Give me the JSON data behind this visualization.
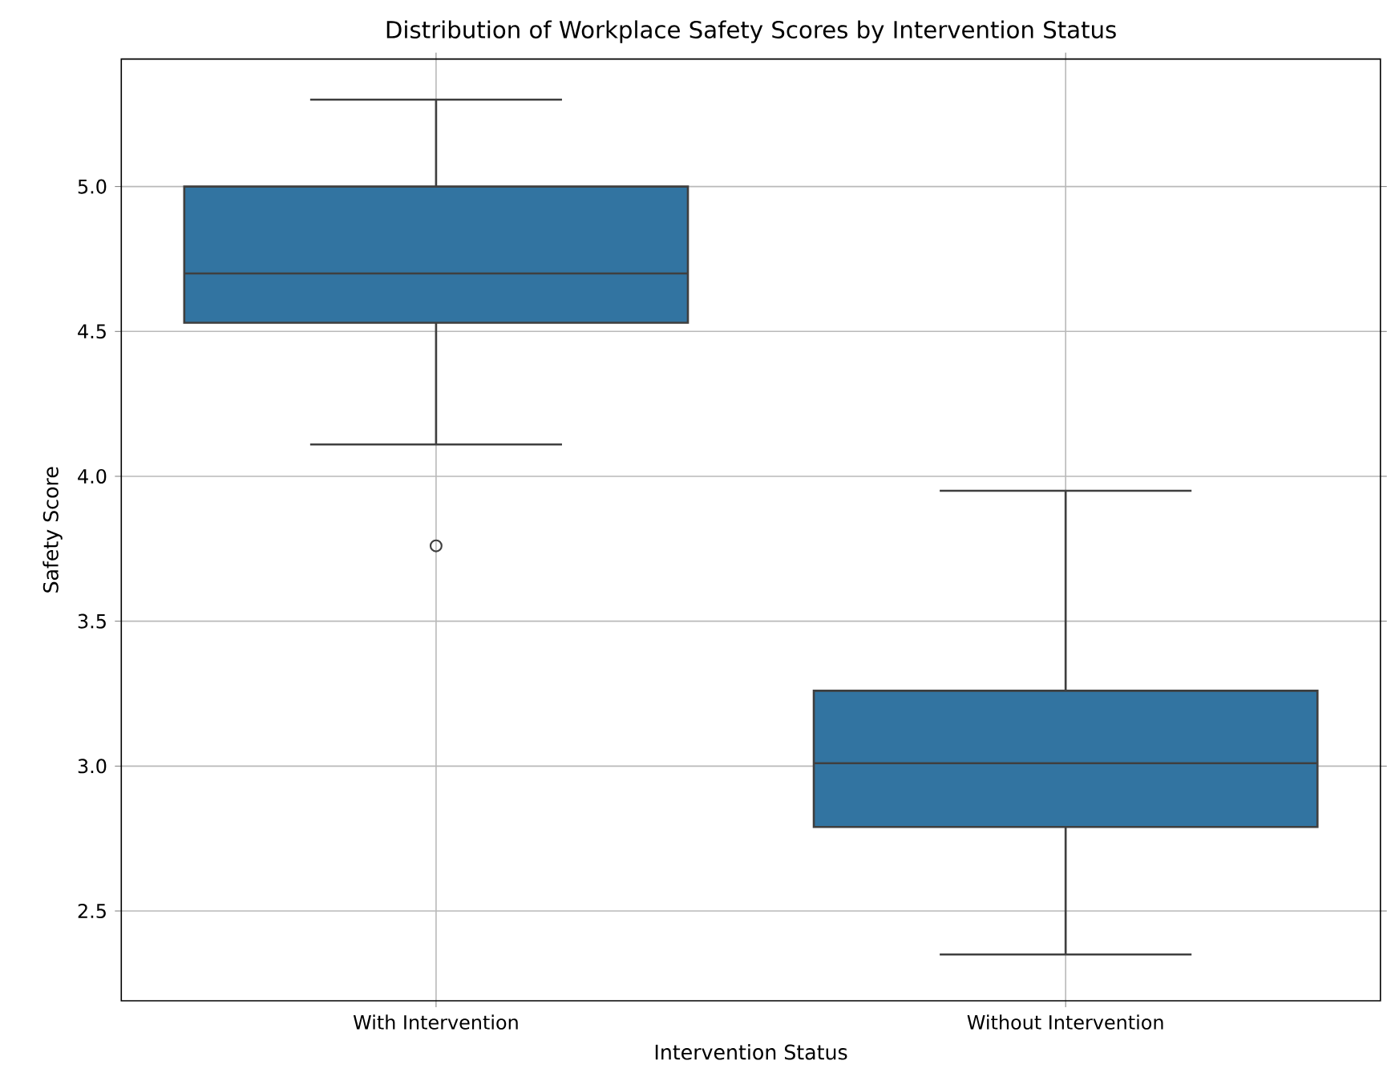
{
  "chart_data": {
    "type": "box",
    "title": "Distribution of Workplace Safety Scores by Intervention Status",
    "xlabel": "Intervention Status",
    "ylabel": "Safety Score",
    "categories": [
      "With Intervention",
      "Without Intervention"
    ],
    "boxes": [
      {
        "low": 4.11,
        "q1": 4.53,
        "median": 4.7,
        "q3": 5.0,
        "high": 5.3,
        "outliers": [
          3.76
        ]
      },
      {
        "low": 2.35,
        "q1": 2.79,
        "median": 3.01,
        "q3": 3.26,
        "high": 3.95
      }
    ],
    "color": "#3274a1",
    "ylim": [
      2.19,
      5.44
    ],
    "yticks": [
      {
        "value": 2.5,
        "label": "2.5"
      },
      {
        "value": 3.0,
        "label": "3.0"
      },
      {
        "value": 3.5,
        "label": "3.5"
      },
      {
        "value": 4.0,
        "label": "4.0"
      },
      {
        "value": 4.5,
        "label": "4.5"
      },
      {
        "value": 5.0,
        "label": "5.0"
      }
    ],
    "grid": true
  }
}
